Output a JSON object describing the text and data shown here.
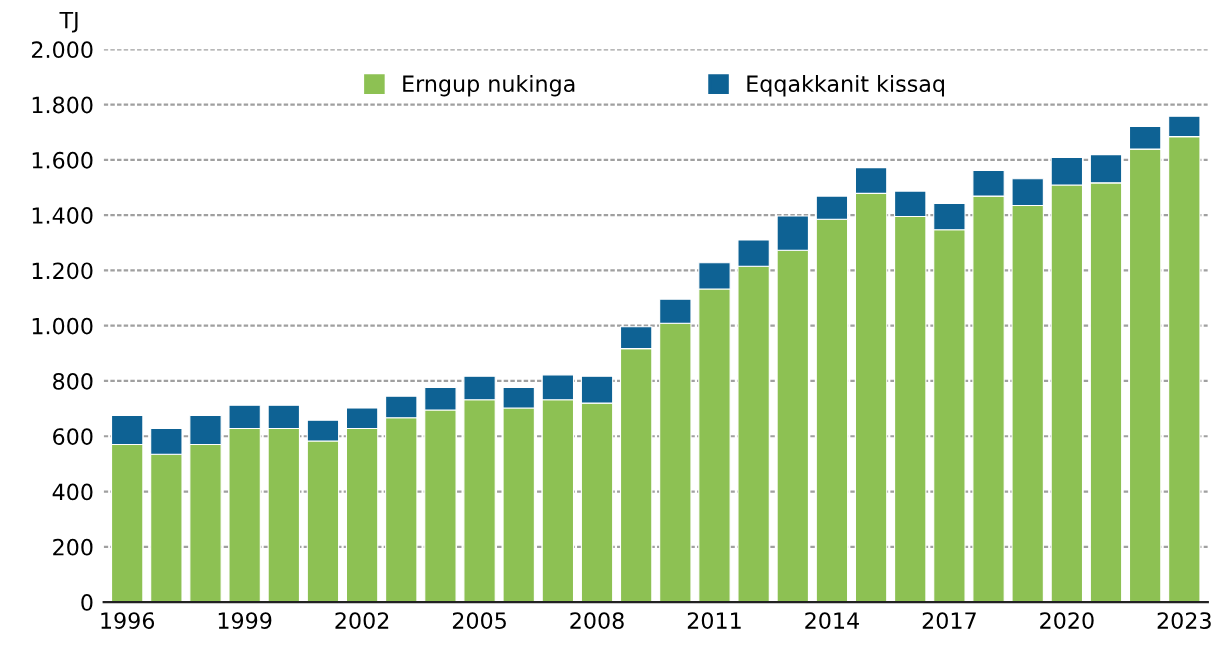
{
  "chart_data": {
    "type": "bar",
    "stacked": true,
    "ylabel": "TJ",
    "categories": [
      "1996",
      null,
      null,
      "1999",
      null,
      null,
      "2002",
      null,
      null,
      "2005",
      null,
      null,
      "2008",
      null,
      null,
      "2011",
      null,
      null,
      "2014",
      null,
      null,
      "2017",
      null,
      null,
      "2020",
      null,
      null,
      "2023"
    ],
    "series": [
      {
        "name": "Erngup nukinga",
        "color": "#8dc153",
        "values": [
          570,
          535,
          570,
          628,
          628,
          583,
          628,
          667,
          695,
          732,
          702,
          732,
          720,
          917,
          1009,
          1133,
          1215,
          1273,
          1385,
          1479,
          1395,
          1347,
          1469,
          1435,
          1509,
          1517,
          1639,
          1684
        ]
      },
      {
        "name": "Eqqakkanit kissaq",
        "color": "#0e6294",
        "values": [
          105,
          93,
          105,
          84,
          84,
          75,
          74,
          78,
          82,
          85,
          75,
          90,
          97,
          79,
          87,
          95,
          95,
          124,
          84,
          93,
          92,
          95,
          93,
          97,
          100,
          102,
          82,
          74
        ]
      }
    ],
    "ylim": [
      0,
      2000
    ],
    "yticks": [
      0,
      200,
      400,
      600,
      800,
      {
        "value": 1000,
        "label": "1.000"
      },
      {
        "value": 1200,
        "label": "1.200"
      },
      {
        "value": 1400,
        "label": "1.400"
      },
      {
        "value": 1600,
        "label": "1.600"
      },
      {
        "value": 1800,
        "label": "1.800"
      },
      {
        "value": 2000,
        "label": "2.000"
      }
    ],
    "grid": "y",
    "legend": "top"
  }
}
